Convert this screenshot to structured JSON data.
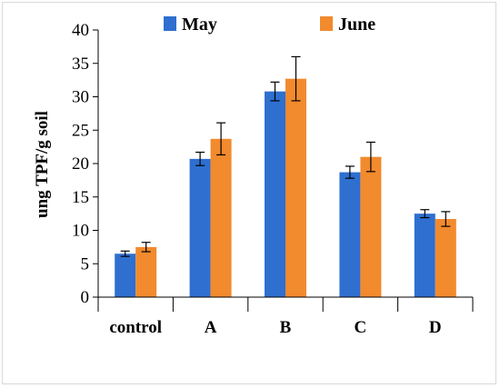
{
  "chart_data": {
    "type": "bar",
    "title": "",
    "xlabel": "",
    "ylabel": "ung TPF/g soil",
    "ylim": [
      0,
      40
    ],
    "yticks": [
      0,
      5,
      10,
      15,
      20,
      25,
      30,
      35,
      40
    ],
    "categories": [
      "control",
      "A",
      "B",
      "C",
      "D"
    ],
    "series": [
      {
        "name": "May",
        "color": "#2e6fd0",
        "values": [
          6.5,
          20.7,
          30.8,
          18.7,
          12.5
        ],
        "errors": [
          0.4,
          1.0,
          1.4,
          0.9,
          0.6
        ]
      },
      {
        "name": "June",
        "color": "#f28a2e",
        "values": [
          7.5,
          23.7,
          32.7,
          21.0,
          11.7
        ],
        "errors": [
          0.7,
          2.4,
          3.3,
          2.2,
          1.1
        ]
      }
    ],
    "grid": false,
    "legend_position": "top"
  }
}
